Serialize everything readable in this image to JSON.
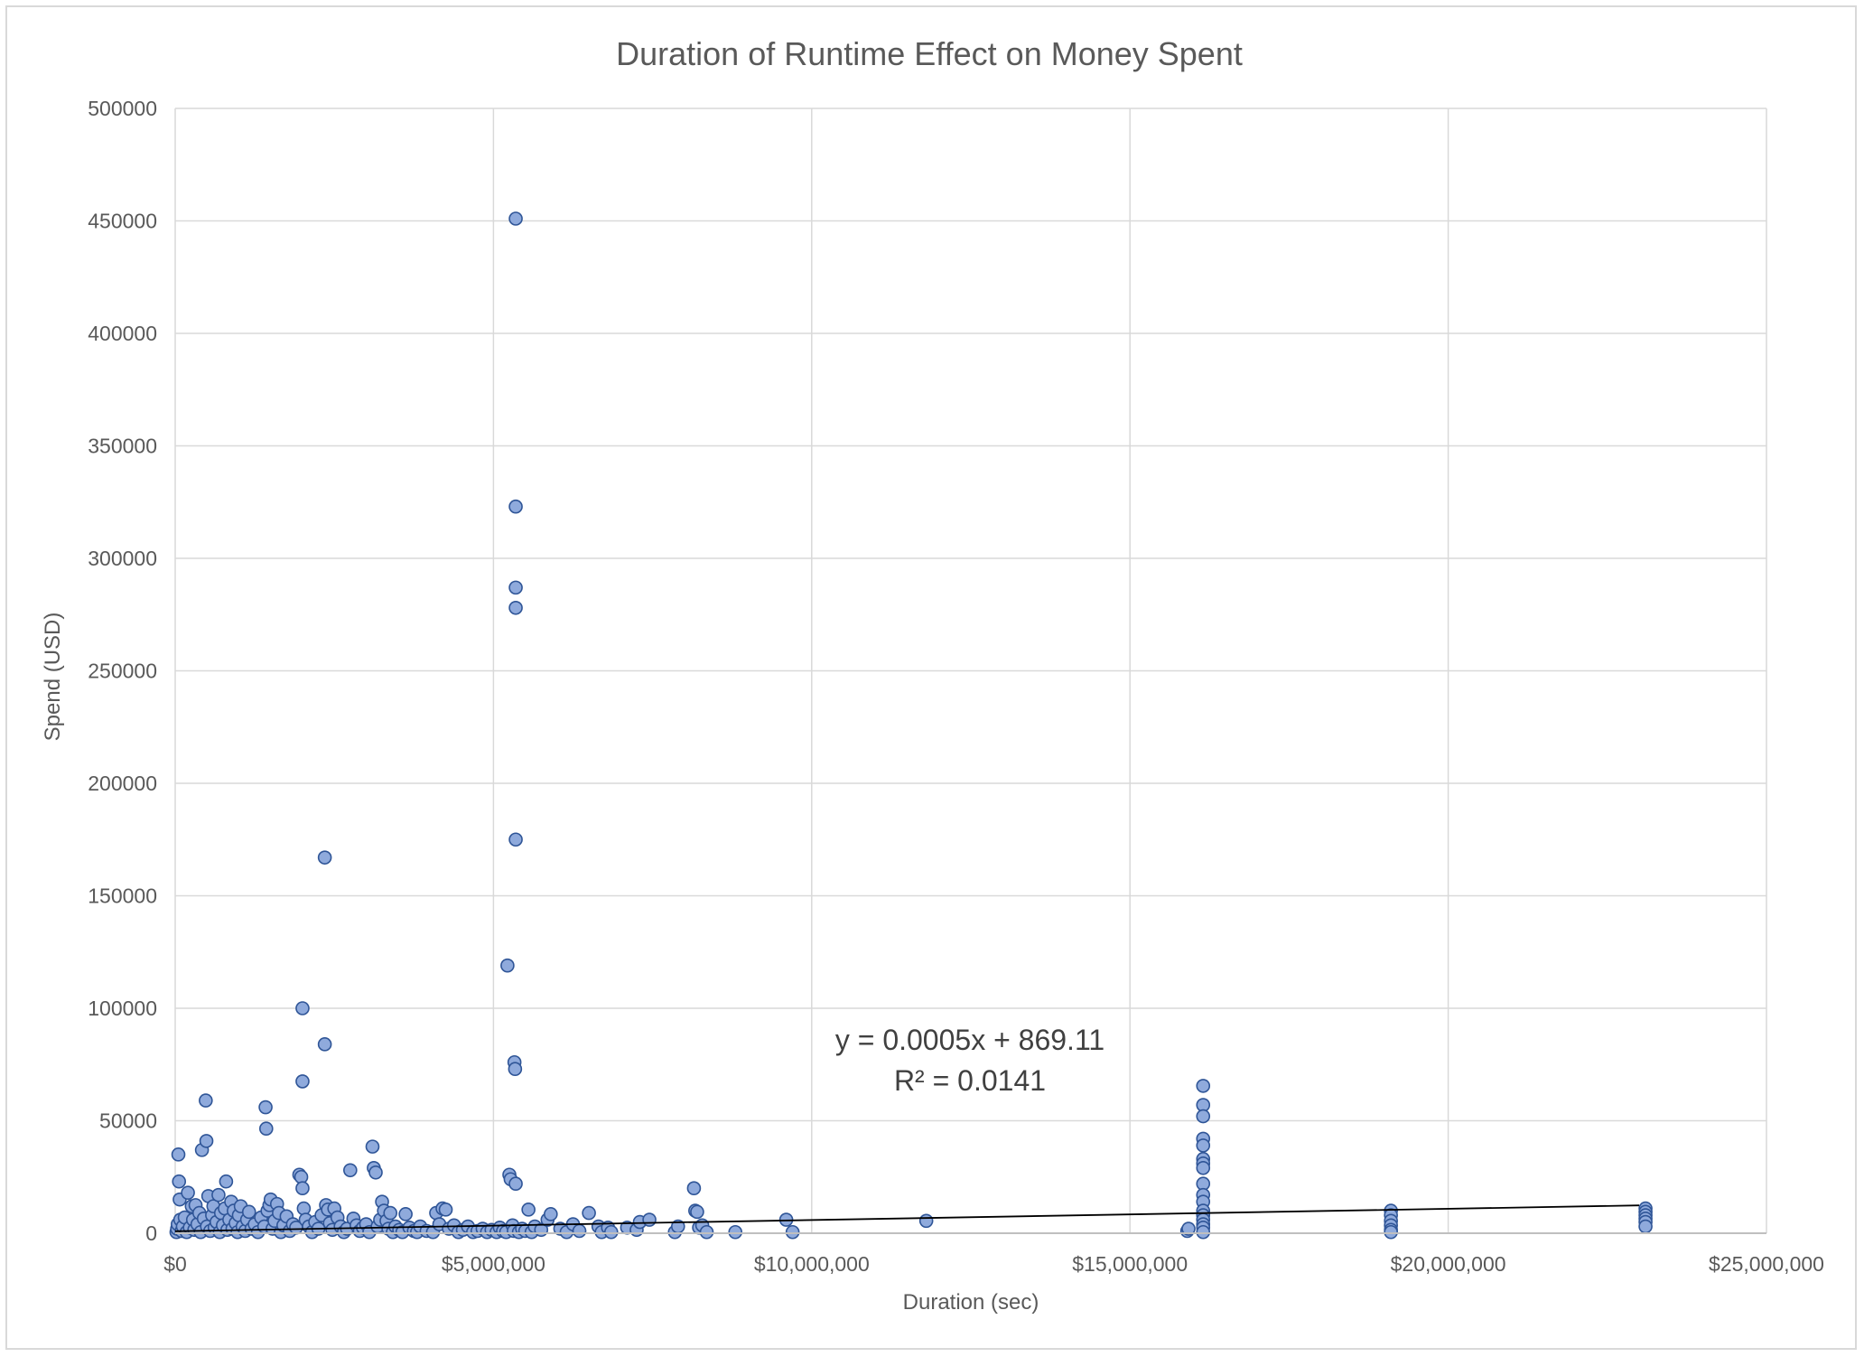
{
  "chart_data": {
    "type": "scatter",
    "title": "Duration of Runtime Effect on Money Spent",
    "xlabel": "Duration (sec)",
    "ylabel": "Spend (USD)",
    "xlim": [
      0,
      25000000
    ],
    "ylim": [
      0,
      500000
    ],
    "x_ticks": [
      0,
      5000000,
      10000000,
      15000000,
      20000000,
      25000000
    ],
    "x_tick_labels": [
      "$0",
      "$5,000,000",
      "$10,000,000",
      "$15,000,000",
      "$20,000,000",
      "$25,000,000"
    ],
    "y_ticks": [
      0,
      50000,
      100000,
      150000,
      200000,
      250000,
      300000,
      350000,
      400000,
      450000,
      500000
    ],
    "y_tick_labels": [
      "0",
      "50000",
      "100000",
      "150000",
      "200000",
      "250000",
      "300000",
      "350000",
      "400000",
      "450000",
      "500000"
    ],
    "grid": true,
    "legend": "none",
    "colors": {
      "marker_fill": "#8faadc",
      "marker_stroke": "#2f5597",
      "trendline": "#000000",
      "grid": "#d9d9d9",
      "text": "#595959"
    },
    "trendline": {
      "slope": 0.0005,
      "intercept": 869.11,
      "x_range": [
        0,
        23000000
      ],
      "equation": "y = 0.0005x + 869.11",
      "r_squared": "R² = 0.0141"
    },
    "points": [
      [
        20000,
        500
      ],
      [
        30000,
        2000
      ],
      [
        40000,
        4000
      ],
      [
        50000,
        35000
      ],
      [
        60000,
        23000
      ],
      [
        70000,
        15000
      ],
      [
        80000,
        6000
      ],
      [
        100000,
        1000
      ],
      [
        120000,
        3000
      ],
      [
        150000,
        7000
      ],
      [
        180000,
        500
      ],
      [
        200000,
        18000
      ],
      [
        230000,
        2500
      ],
      [
        260000,
        12000
      ],
      [
        280000,
        6000
      ],
      [
        300000,
        1500
      ],
      [
        320000,
        12500
      ],
      [
        350000,
        4000
      ],
      [
        380000,
        9000
      ],
      [
        400000,
        500
      ],
      [
        420000,
        37000
      ],
      [
        450000,
        6500
      ],
      [
        480000,
        59000
      ],
      [
        490000,
        41000
      ],
      [
        500000,
        3000
      ],
      [
        520000,
        16500
      ],
      [
        550000,
        1000
      ],
      [
        580000,
        8000
      ],
      [
        600000,
        12000
      ],
      [
        620000,
        2500
      ],
      [
        650000,
        5000
      ],
      [
        680000,
        17000
      ],
      [
        700000,
        500
      ],
      [
        720000,
        9000
      ],
      [
        750000,
        3500
      ],
      [
        780000,
        11000
      ],
      [
        800000,
        23000
      ],
      [
        820000,
        1500
      ],
      [
        850000,
        6000
      ],
      [
        880000,
        14000
      ],
      [
        900000,
        2000
      ],
      [
        920000,
        10000
      ],
      [
        950000,
        4500
      ],
      [
        980000,
        500
      ],
      [
        1000000,
        8000
      ],
      [
        1030000,
        12000
      ],
      [
        1060000,
        3000
      ],
      [
        1100000,
        1000
      ],
      [
        1130000,
        6000
      ],
      [
        1160000,
        9500
      ],
      [
        1200000,
        2000
      ],
      [
        1250000,
        4000
      ],
      [
        1300000,
        500
      ],
      [
        1350000,
        7000
      ],
      [
        1400000,
        3000
      ],
      [
        1420000,
        56000
      ],
      [
        1430000,
        46500
      ],
      [
        1450000,
        10000
      ],
      [
        1480000,
        12500
      ],
      [
        1500000,
        15000
      ],
      [
        1530000,
        2000
      ],
      [
        1560000,
        5500
      ],
      [
        1600000,
        13000
      ],
      [
        1630000,
        9000
      ],
      [
        1660000,
        500
      ],
      [
        1700000,
        3500
      ],
      [
        1750000,
        7500
      ],
      [
        1800000,
        1000
      ],
      [
        1850000,
        4000
      ],
      [
        1900000,
        2500
      ],
      [
        1950000,
        26000
      ],
      [
        1980000,
        25000
      ],
      [
        2000000,
        20000
      ],
      [
        2000000,
        100000
      ],
      [
        2000000,
        67500
      ],
      [
        2020000,
        11000
      ],
      [
        2050000,
        6000
      ],
      [
        2100000,
        3000
      ],
      [
        2150000,
        500
      ],
      [
        2200000,
        5000
      ],
      [
        2250000,
        2000
      ],
      [
        2300000,
        8000
      ],
      [
        2350000,
        167000
      ],
      [
        2350000,
        84000
      ],
      [
        2370000,
        12500
      ],
      [
        2400000,
        10500
      ],
      [
        2430000,
        4500
      ],
      [
        2470000,
        1500
      ],
      [
        2500000,
        11000
      ],
      [
        2550000,
        7000
      ],
      [
        2600000,
        3000
      ],
      [
        2650000,
        500
      ],
      [
        2700000,
        2000
      ],
      [
        2750000,
        28000
      ],
      [
        2800000,
        6500
      ],
      [
        2850000,
        3500
      ],
      [
        2900000,
        1000
      ],
      [
        2950000,
        2500
      ],
      [
        3000000,
        4000
      ],
      [
        3050000,
        500
      ],
      [
        3100000,
        38500
      ],
      [
        3120000,
        29000
      ],
      [
        3150000,
        27000
      ],
      [
        3180000,
        3000
      ],
      [
        3220000,
        6000
      ],
      [
        3250000,
        14000
      ],
      [
        3280000,
        10000
      ],
      [
        3320000,
        5500
      ],
      [
        3350000,
        2000
      ],
      [
        3380000,
        9000
      ],
      [
        3420000,
        500
      ],
      [
        3460000,
        3000
      ],
      [
        3520000,
        1500
      ],
      [
        3570000,
        500
      ],
      [
        3620000,
        8500
      ],
      [
        3680000,
        2500
      ],
      [
        3750000,
        1000
      ],
      [
        3800000,
        500
      ],
      [
        3850000,
        3000
      ],
      [
        3950000,
        1000
      ],
      [
        4050000,
        500
      ],
      [
        4100000,
        9000
      ],
      [
        4150000,
        4000
      ],
      [
        4200000,
        11000
      ],
      [
        4250000,
        10500
      ],
      [
        4300000,
        2000
      ],
      [
        4380000,
        3500
      ],
      [
        4450000,
        500
      ],
      [
        4520000,
        1500
      ],
      [
        4600000,
        3000
      ],
      [
        4680000,
        500
      ],
      [
        4750000,
        1000
      ],
      [
        4830000,
        2000
      ],
      [
        4900000,
        500
      ],
      [
        4970000,
        1500
      ],
      [
        5050000,
        500
      ],
      [
        5100000,
        2500
      ],
      [
        5150000,
        1000
      ],
      [
        5200000,
        500
      ],
      [
        5220000,
        119000
      ],
      [
        5250000,
        26000
      ],
      [
        5270000,
        24000
      ],
      [
        5300000,
        3500
      ],
      [
        5320000,
        1000
      ],
      [
        5330000,
        76000
      ],
      [
        5340000,
        73000
      ],
      [
        5350000,
        22000
      ],
      [
        5350000,
        451000
      ],
      [
        5350000,
        323000
      ],
      [
        5350000,
        287000
      ],
      [
        5350000,
        278000
      ],
      [
        5350000,
        175000
      ],
      [
        5400000,
        500
      ],
      [
        5450000,
        2000
      ],
      [
        5500000,
        1000
      ],
      [
        5550000,
        10500
      ],
      [
        5600000,
        500
      ],
      [
        5650000,
        3000
      ],
      [
        5750000,
        1500
      ],
      [
        5850000,
        6000
      ],
      [
        5900000,
        8500
      ],
      [
        6050000,
        2000
      ],
      [
        6150000,
        500
      ],
      [
        6250000,
        4000
      ],
      [
        6350000,
        1000
      ],
      [
        6500000,
        9000
      ],
      [
        6650000,
        3000
      ],
      [
        6700000,
        500
      ],
      [
        6800000,
        2500
      ],
      [
        6850000,
        500
      ],
      [
        7100000,
        2500
      ],
      [
        7250000,
        1500
      ],
      [
        7300000,
        5000
      ],
      [
        7450000,
        6000
      ],
      [
        7850000,
        500
      ],
      [
        7900000,
        3000
      ],
      [
        8150000,
        20000
      ],
      [
        8170000,
        10000
      ],
      [
        8200000,
        9500
      ],
      [
        8230000,
        2500
      ],
      [
        8280000,
        3500
      ],
      [
        8350000,
        500
      ],
      [
        8800000,
        500
      ],
      [
        9600000,
        6000
      ],
      [
        9700000,
        500
      ],
      [
        11800000,
        5500
      ],
      [
        15900000,
        1000
      ],
      [
        15920000,
        2000
      ],
      [
        16150000,
        65500
      ],
      [
        16150000,
        57000
      ],
      [
        16150000,
        52000
      ],
      [
        16150000,
        42000
      ],
      [
        16150000,
        39000
      ],
      [
        16150000,
        33000
      ],
      [
        16150000,
        31000
      ],
      [
        16150000,
        29000
      ],
      [
        16150000,
        22000
      ],
      [
        16150000,
        17000
      ],
      [
        16150000,
        14000
      ],
      [
        16150000,
        10000
      ],
      [
        16150000,
        8000
      ],
      [
        16150000,
        6000
      ],
      [
        16150000,
        4000
      ],
      [
        16150000,
        2500
      ],
      [
        16150000,
        500
      ],
      [
        19100000,
        10000
      ],
      [
        19100000,
        8000
      ],
      [
        19100000,
        5500
      ],
      [
        19100000,
        3500
      ],
      [
        19100000,
        1500
      ],
      [
        19100000,
        500
      ],
      [
        23100000,
        11000
      ],
      [
        23100000,
        9500
      ],
      [
        23100000,
        8000
      ],
      [
        23100000,
        6500
      ],
      [
        23100000,
        5000
      ],
      [
        23100000,
        3000
      ]
    ]
  }
}
